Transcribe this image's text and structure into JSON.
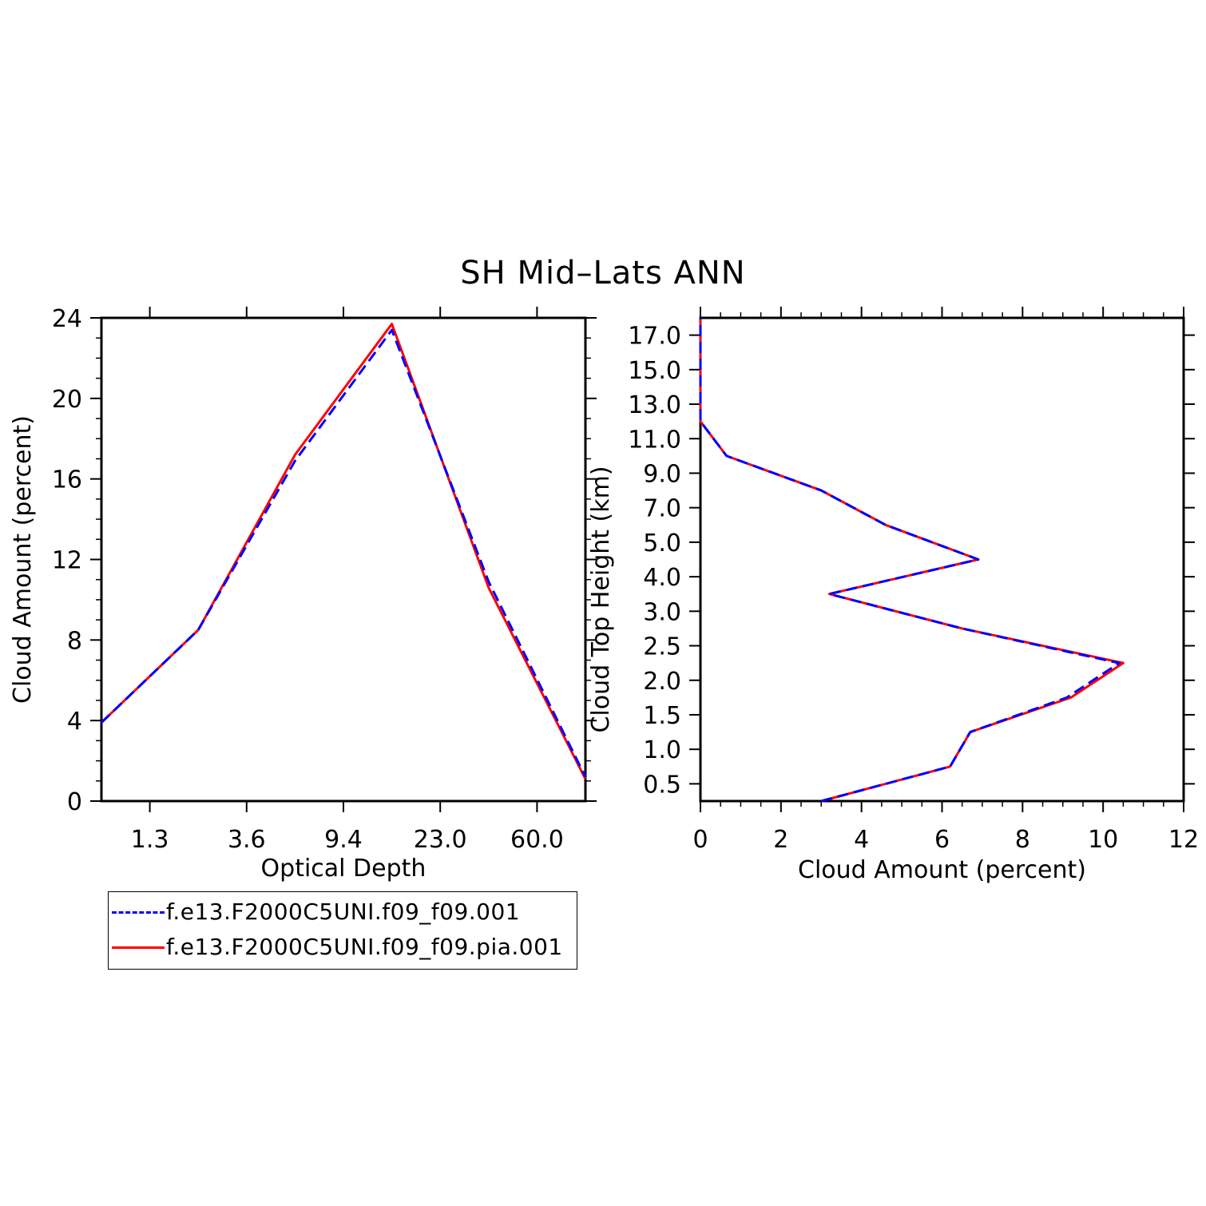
{
  "title": "SH Mid–Lats ANN",
  "colors": {
    "series1": "#0000ff",
    "series2": "#ff0000"
  },
  "legend": {
    "items": [
      {
        "label": "f.e13.F2000C5UNI.f09_f09.001",
        "style": "dashed",
        "color": "#0000ff"
      },
      {
        "label": "f.e13.F2000C5UNI.f09_f09.pia.001",
        "style": "solid",
        "color": "#ff0000"
      }
    ]
  },
  "chart_data": [
    {
      "type": "line",
      "xlabel": "Optical Depth",
      "ylabel": "Cloud Amount (percent)",
      "x_ticks": [
        "1.3",
        "3.6",
        "9.4",
        "23.0",
        "60.0"
      ],
      "y_ticks": [
        "0",
        "4",
        "8",
        "12",
        "16",
        "20",
        "24"
      ],
      "ylim": [
        0,
        24
      ],
      "x_bins": 5,
      "grid": false,
      "series": [
        {
          "name": "f.e13.F2000C5UNI.f09_f09.001",
          "x": [
            0.0,
            1.0,
            2.0,
            3.0,
            4.0,
            5.0
          ],
          "y": [
            3.9,
            8.5,
            16.9,
            23.4,
            10.9,
            1.2
          ]
        },
        {
          "name": "f.e13.F2000C5UNI.f09_f09.pia.001",
          "x": [
            0.0,
            1.0,
            2.0,
            3.0,
            4.0,
            5.0
          ],
          "y": [
            3.9,
            8.5,
            17.2,
            23.7,
            10.6,
            1.1
          ]
        }
      ]
    },
    {
      "type": "line",
      "xlabel": "Cloud Amount (percent)",
      "ylabel": "Cloud Top Height (km)",
      "x_ticks": [
        "0",
        "2",
        "4",
        "6",
        "8",
        "10",
        "12"
      ],
      "xlim": [
        0,
        12
      ],
      "y_ticks": [
        "0.5",
        "1.0",
        "1.5",
        "2.0",
        "2.5",
        "3.0",
        "4.0",
        "5.0",
        "7.0",
        "9.0",
        "11.0",
        "13.0",
        "15.0",
        "17.0"
      ],
      "y_levels": 14,
      "grid": false,
      "series": [
        {
          "name": "f.e13.F2000C5UNI.f09_f09.001",
          "x": [
            3.0,
            6.2,
            6.7,
            9.1,
            10.4,
            6.5,
            3.2,
            6.9,
            4.6,
            3.0,
            0.65,
            0.0,
            0.0
          ],
          "y": [
            "0.5",
            "1.0",
            "1.5",
            "2.0",
            "2.5",
            "3.0",
            "4.0",
            "5.0",
            "7.0",
            "9.0",
            "11.0",
            "13.0",
            "15.0"
          ]
        },
        {
          "name": "f.e13.F2000C5UNI.f09_f09.pia.001",
          "x": [
            3.0,
            6.2,
            6.7,
            9.2,
            10.5,
            6.5,
            3.2,
            6.9,
            4.6,
            3.0,
            0.65,
            0.0,
            0.0
          ],
          "y": [
            "0.5",
            "1.0",
            "1.5",
            "2.0",
            "2.5",
            "3.0",
            "4.0",
            "5.0",
            "7.0",
            "9.0",
            "11.0",
            "13.0",
            "15.0"
          ]
        }
      ]
    }
  ]
}
